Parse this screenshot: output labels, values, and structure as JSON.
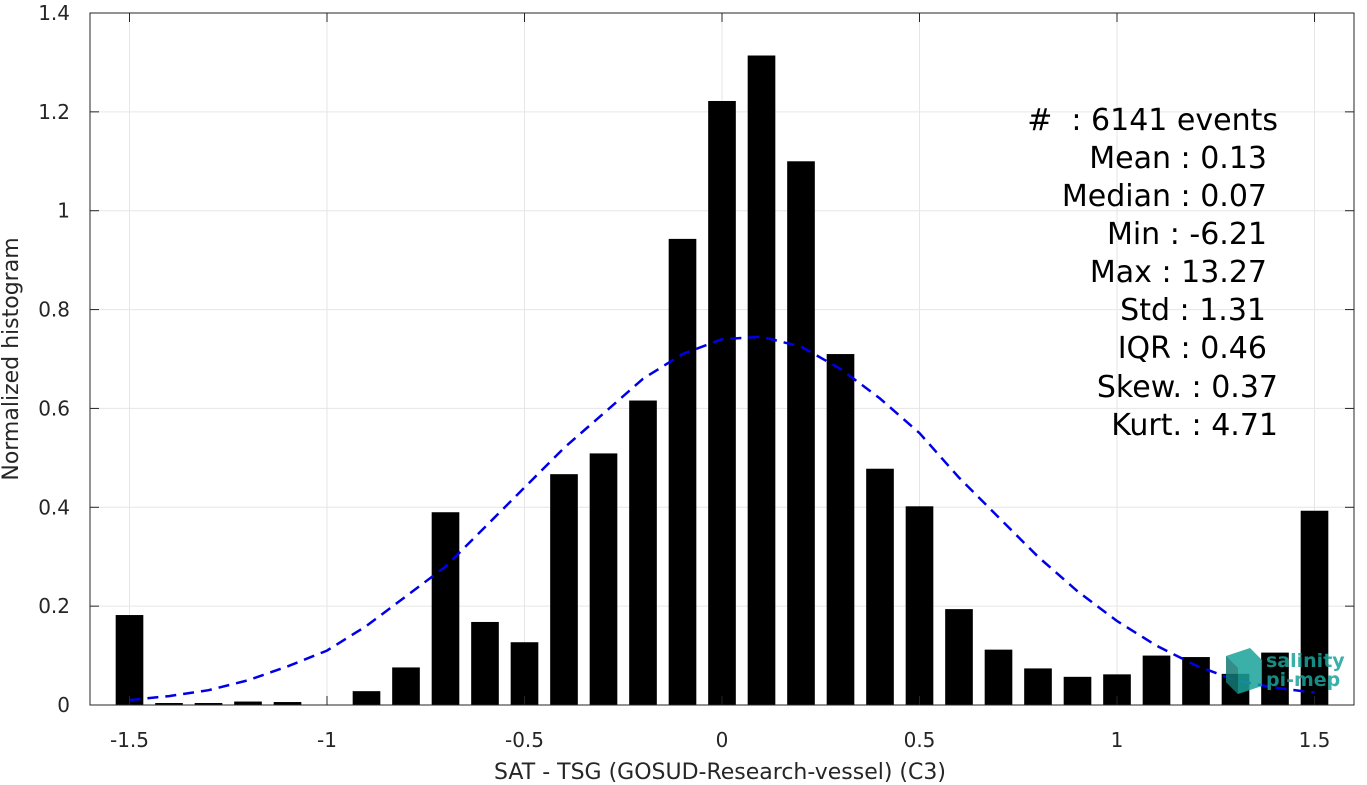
{
  "chart_data": {
    "type": "bar",
    "xlabel": "SAT - TSG (GOSUD-Research-vessel) (C3)",
    "ylabel": "Normalized histogram",
    "xlim": [
      -1.6,
      1.6
    ],
    "ylim": [
      0,
      1.4
    ],
    "xticks": [
      -1.5,
      -1,
      -0.5,
      0,
      0.5,
      1,
      1.5
    ],
    "xtick_labels": [
      "-1.5",
      "-1",
      "-0.5",
      "0",
      "0.5",
      "1",
      "1.5"
    ],
    "yticks": [
      0,
      0.2,
      0.4,
      0.6,
      0.8,
      1,
      1.2,
      1.4
    ],
    "ytick_labels": [
      "0",
      "0.2",
      "0.4",
      "0.6",
      "0.8",
      "1",
      "1.2",
      "1.4"
    ],
    "grid": true,
    "bar_width": 0.07,
    "x": [
      -1.5,
      -1.4,
      -1.3,
      -1.2,
      -1.1,
      -1.0,
      -0.9,
      -0.8,
      -0.7,
      -0.6,
      -0.5,
      -0.4,
      -0.3,
      -0.2,
      -0.1,
      0.0,
      0.1,
      0.2,
      0.3,
      0.4,
      0.5,
      0.6,
      0.7,
      0.8,
      0.9,
      1.0,
      1.1,
      1.2,
      1.3,
      1.4,
      1.5
    ],
    "values": [
      0.182,
      0.004,
      0.004,
      0.007,
      0.006,
      0.0,
      0.028,
      0.076,
      0.39,
      0.168,
      0.127,
      0.467,
      0.509,
      0.616,
      0.943,
      1.222,
      1.314,
      1.1,
      0.71,
      0.478,
      0.402,
      0.194,
      0.112,
      0.074,
      0.057,
      0.062,
      0.1,
      0.097,
      0.063,
      0.106,
      0.393
    ],
    "bar_color": "#000000",
    "fit_curve": {
      "style": "dashed",
      "color": "#0000e6",
      "x": [
        -1.5,
        -1.4,
        -1.3,
        -1.2,
        -1.1,
        -1.0,
        -0.9,
        -0.8,
        -0.7,
        -0.6,
        -0.5,
        -0.4,
        -0.3,
        -0.2,
        -0.1,
        0.0,
        0.1,
        0.2,
        0.3,
        0.4,
        0.5,
        0.6,
        0.7,
        0.8,
        0.9,
        1.0,
        1.1,
        1.2,
        1.3,
        1.4,
        1.5
      ],
      "y": [
        0.01,
        0.018,
        0.03,
        0.05,
        0.078,
        0.11,
        0.16,
        0.22,
        0.28,
        0.36,
        0.44,
        0.52,
        0.59,
        0.66,
        0.71,
        0.74,
        0.745,
        0.725,
        0.68,
        0.62,
        0.55,
        0.46,
        0.38,
        0.3,
        0.23,
        0.17,
        0.12,
        0.08,
        0.05,
        0.035,
        0.025
      ]
    }
  },
  "stats": {
    "lines": [
      "#  : 6141 events",
      "Mean : 0.13",
      "Median : 0.07",
      "Min : -6.21",
      "Max : 13.27",
      "Std : 1.31",
      "IQR : 0.46",
      "Skew. : 0.37",
      "Kurt. : 4.71"
    ]
  },
  "logo": {
    "line1": "salinity",
    "line2": "pi-mep",
    "color": "#1aa39a"
  }
}
